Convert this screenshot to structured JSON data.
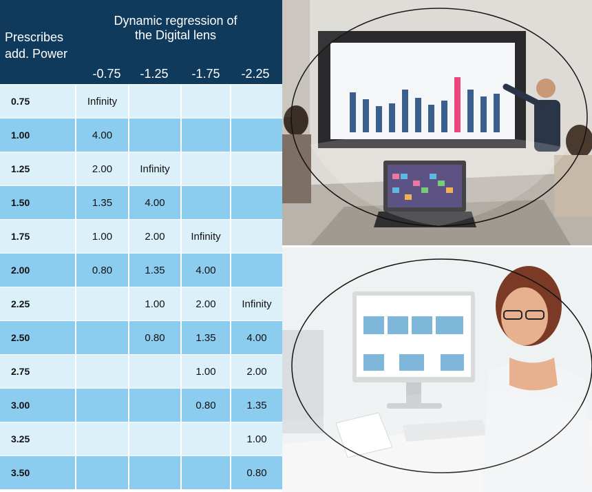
{
  "header": {
    "prescribes": "Prescribes\nadd. Power",
    "title": "Dynamic regression of\nthe Digital lens",
    "columns": [
      "-0.75",
      "-1.25",
      "-1.75",
      "-2.25"
    ]
  },
  "rows": [
    {
      "add": "0.75",
      "values": [
        "Infinity",
        "",
        "",
        ""
      ]
    },
    {
      "add": "1.00",
      "values": [
        "4.00",
        "",
        "",
        ""
      ]
    },
    {
      "add": "1.25",
      "values": [
        "2.00",
        "Infinity",
        "",
        ""
      ]
    },
    {
      "add": "1.50",
      "values": [
        "1.35",
        "4.00",
        "",
        ""
      ]
    },
    {
      "add": "1.75",
      "values": [
        "1.00",
        "2.00",
        "Infinity",
        ""
      ]
    },
    {
      "add": "2.00",
      "values": [
        "0.80",
        "1.35",
        "4.00",
        ""
      ]
    },
    {
      "add": "2.25",
      "values": [
        "",
        "1.00",
        "2.00",
        "Infinity"
      ]
    },
    {
      "add": "2.50",
      "values": [
        "",
        "0.80",
        "1.35",
        "4.00"
      ]
    },
    {
      "add": "2.75",
      "values": [
        "",
        "",
        "1.00",
        "2.00"
      ]
    },
    {
      "add": "3.00",
      "values": [
        "",
        "",
        "0.80",
        "1.35"
      ]
    },
    {
      "add": "3.25",
      "values": [
        "",
        "",
        "",
        "1.00"
      ]
    },
    {
      "add": "3.50",
      "values": [
        "",
        "",
        "",
        "0.80"
      ]
    }
  ],
  "colors": {
    "header": "#0f3a5c",
    "row_light": "#dcf0fa",
    "row_dark": "#8cccef",
    "pink_bar": "#e8487a",
    "blue_bar": "#3b5f8c"
  }
}
